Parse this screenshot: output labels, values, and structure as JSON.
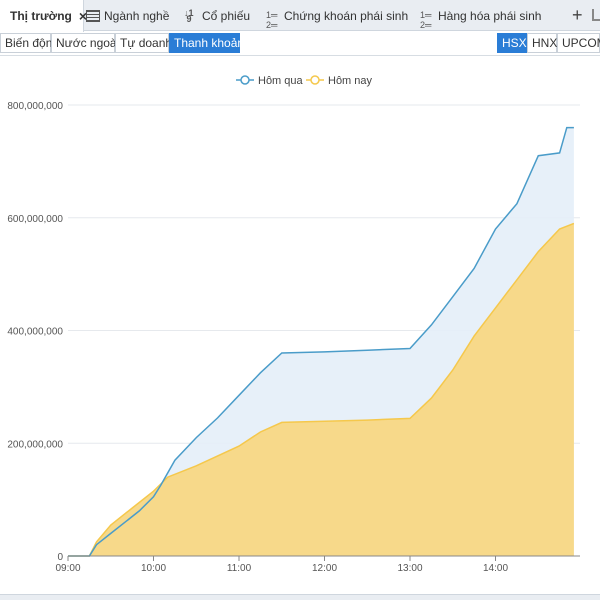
{
  "tabs": [
    {
      "label": "Thị trường",
      "active": true,
      "icon": "grid-icon"
    },
    {
      "label": "Ngành nghề",
      "active": false,
      "icon": "grid-icon"
    },
    {
      "label": "Cổ phiếu",
      "active": false,
      "icon": "sort-icon"
    },
    {
      "label": "Chứng khoán phái sinh",
      "active": false,
      "icon": "list-icon"
    },
    {
      "label": "Hàng hóa phái sinh",
      "active": false,
      "icon": "list-icon"
    }
  ],
  "close_glyph": "×",
  "add_glyph": "+",
  "subtabs": [
    {
      "label": "Biến động",
      "active": false
    },
    {
      "label": "Nước ngoài",
      "active": false
    },
    {
      "label": "Tự doanh",
      "active": false
    },
    {
      "label": "Thanh khoản",
      "active": true
    }
  ],
  "exchanges": [
    {
      "label": "HSX",
      "active": true
    },
    {
      "label": "HNX",
      "active": false
    },
    {
      "label": "UPCOM",
      "active": false
    }
  ],
  "colors": {
    "accent": "#2a7dd6",
    "series_yesterday": "#4a9cc9",
    "series_yesterday_fill": "#e4eef8",
    "series_today": "#f5c84c",
    "series_today_fill": "#f7d98a"
  },
  "chart_data": {
    "type": "area",
    "legend_position": "top-center",
    "grid": true,
    "ylim": [
      0,
      800000000
    ],
    "yticks": [
      0,
      200000000,
      400000000,
      600000000,
      800000000
    ],
    "ytick_labels": [
      "0",
      "200,000,000",
      "400,000,000",
      "600,000,000",
      "800,000,000"
    ],
    "xlim": [
      "09:00",
      "14:55"
    ],
    "xtick_labels": [
      "09:00",
      "10:00",
      "11:00",
      "12:00",
      "13:00",
      "14:00"
    ],
    "series": [
      {
        "name": "Hôm qua",
        "points": [
          [
            "09:00",
            0
          ],
          [
            "09:15",
            0
          ],
          [
            "09:20",
            20000000
          ],
          [
            "09:30",
            40000000
          ],
          [
            "09:40",
            60000000
          ],
          [
            "09:50",
            80000000
          ],
          [
            "10:00",
            105000000
          ],
          [
            "10:05",
            125000000
          ],
          [
            "10:15",
            170000000
          ],
          [
            "10:30",
            210000000
          ],
          [
            "10:45",
            245000000
          ],
          [
            "11:00",
            285000000
          ],
          [
            "11:15",
            325000000
          ],
          [
            "11:30",
            360000000
          ],
          [
            "12:00",
            362000000
          ],
          [
            "12:30",
            365000000
          ],
          [
            "13:00",
            368000000
          ],
          [
            "13:15",
            410000000
          ],
          [
            "13:30",
            460000000
          ],
          [
            "13:45",
            510000000
          ],
          [
            "14:00",
            580000000
          ],
          [
            "14:15",
            625000000
          ],
          [
            "14:30",
            710000000
          ],
          [
            "14:45",
            715000000
          ],
          [
            "14:50",
            760000000
          ],
          [
            "14:55",
            760000000
          ]
        ]
      },
      {
        "name": "Hôm nay",
        "points": [
          [
            "09:00",
            0
          ],
          [
            "09:15",
            0
          ],
          [
            "09:20",
            25000000
          ],
          [
            "09:30",
            55000000
          ],
          [
            "09:45",
            85000000
          ],
          [
            "10:00",
            115000000
          ],
          [
            "10:10",
            140000000
          ],
          [
            "10:30",
            160000000
          ],
          [
            "11:00",
            195000000
          ],
          [
            "11:15",
            220000000
          ],
          [
            "11:30",
            237000000
          ],
          [
            "12:00",
            239000000
          ],
          [
            "12:30",
            241000000
          ],
          [
            "13:00",
            244000000
          ],
          [
            "13:15",
            280000000
          ],
          [
            "13:30",
            330000000
          ],
          [
            "13:45",
            390000000
          ],
          [
            "14:00",
            440000000
          ],
          [
            "14:15",
            490000000
          ],
          [
            "14:30",
            540000000
          ],
          [
            "14:45",
            580000000
          ],
          [
            "14:55",
            590000000
          ]
        ]
      }
    ]
  }
}
